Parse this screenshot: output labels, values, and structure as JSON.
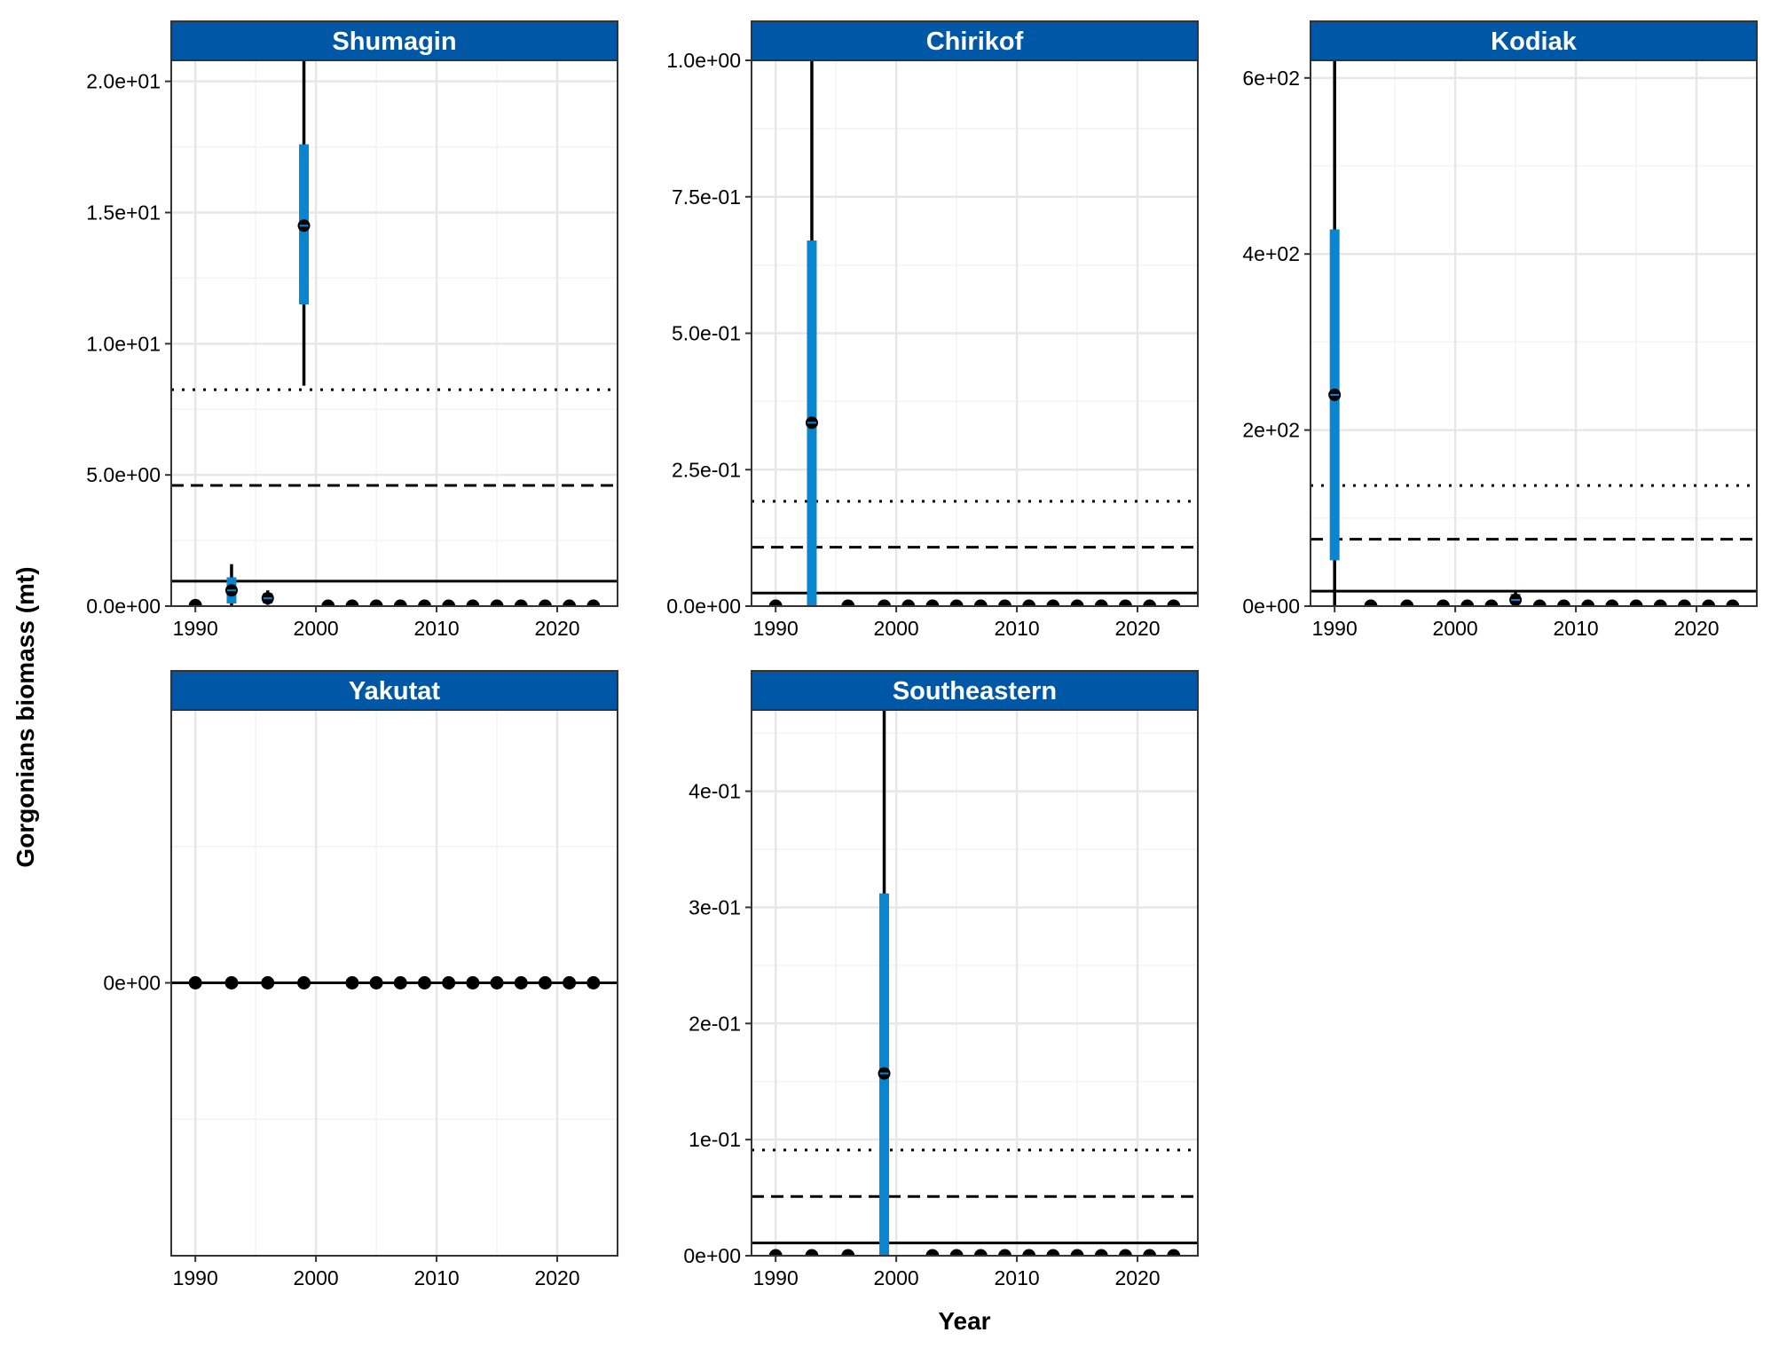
{
  "figure": {
    "y_axis_label": "Gorgonians biomass (mt)",
    "x_axis_label": "Year",
    "colors": {
      "strip_fill": "#0057A6",
      "strip_text": "#ffffff",
      "range_bar": "#0A86D0",
      "points": "#000000",
      "grid_major": "#E7E7E7",
      "grid_minor": "#F3F3F3",
      "panel_border": "#333333"
    },
    "reference_lines": [
      {
        "style": "solid",
        "meaning": "mean"
      },
      {
        "style": "dashed",
        "meaning": "mean + 1 sd"
      },
      {
        "style": "dotted",
        "meaning": "mean + 2 sd"
      }
    ]
  },
  "chart_data": [
    {
      "type": "scatter",
      "panel": "Shumagin",
      "title": "Shumagin",
      "xlim": [
        1988,
        2025
      ],
      "ylim": [
        0,
        20.8
      ],
      "x_ticks": [
        1990,
        2000,
        2010,
        2020
      ],
      "y_ticks": [
        0,
        5,
        10,
        15,
        20
      ],
      "y_tick_labels": [
        "0.0e+00",
        "5.0e+00",
        "1.0e+01",
        "1.5e+01",
        "2.0e+01"
      ],
      "reference_lines": {
        "mean": 0.95,
        "sd1": 4.6,
        "sd2": 8.25
      },
      "points": [
        {
          "year": 1990,
          "value": 0.02
        },
        {
          "year": 1993,
          "value": 0.6,
          "inner": [
            0.1,
            1.1
          ],
          "outer": [
            0,
            1.6
          ]
        },
        {
          "year": 1996,
          "value": 0.3,
          "inner": [
            0.1,
            0.5
          ],
          "outer": [
            0.05,
            0.6
          ]
        },
        {
          "year": 1999,
          "value": 14.5,
          "inner": [
            11.5,
            17.6
          ],
          "outer": [
            8.4,
            20.8
          ]
        },
        {
          "year": 2001,
          "value": 0.0
        },
        {
          "year": 2003,
          "value": 0.0
        },
        {
          "year": 2005,
          "value": 0.0
        },
        {
          "year": 2007,
          "value": 0.0
        },
        {
          "year": 2009,
          "value": 0.0
        },
        {
          "year": 2011,
          "value": 0.0
        },
        {
          "year": 2013,
          "value": 0.0
        },
        {
          "year": 2015,
          "value": 0.0
        },
        {
          "year": 2017,
          "value": 0.0
        },
        {
          "year": 2019,
          "value": 0.0
        },
        {
          "year": 2021,
          "value": 0.0
        },
        {
          "year": 2023,
          "value": 0.0
        }
      ]
    },
    {
      "type": "scatter",
      "panel": "Chirikof",
      "title": "Chirikof",
      "xlim": [
        1988,
        2025
      ],
      "ylim": [
        0,
        1.0
      ],
      "x_ticks": [
        1990,
        2000,
        2010,
        2020
      ],
      "y_ticks": [
        0,
        0.25,
        0.5,
        0.75,
        1.0
      ],
      "y_tick_labels": [
        "0.0e+00",
        "2.5e-01",
        "5.0e-01",
        "7.5e-01",
        "1.0e+00"
      ],
      "reference_lines": {
        "mean": 0.024,
        "sd1": 0.108,
        "sd2": 0.192
      },
      "points": [
        {
          "year": 1990,
          "value": 0.0
        },
        {
          "year": 1993,
          "value": 0.336,
          "inner": [
            0,
            0.67
          ],
          "outer": [
            0,
            1.0
          ]
        },
        {
          "year": 1996,
          "value": 0.0
        },
        {
          "year": 1999,
          "value": 0.0
        },
        {
          "year": 2001,
          "value": 0.0
        },
        {
          "year": 2003,
          "value": 0.0
        },
        {
          "year": 2005,
          "value": 0.0
        },
        {
          "year": 2007,
          "value": 0.0
        },
        {
          "year": 2009,
          "value": 0.0
        },
        {
          "year": 2011,
          "value": 0.0
        },
        {
          "year": 2013,
          "value": 0.0
        },
        {
          "year": 2015,
          "value": 0.0
        },
        {
          "year": 2017,
          "value": 0.0
        },
        {
          "year": 2019,
          "value": 0.0
        },
        {
          "year": 2021,
          "value": 0.0
        },
        {
          "year": 2023,
          "value": 0.0
        }
      ]
    },
    {
      "type": "scatter",
      "panel": "Kodiak",
      "title": "Kodiak",
      "xlim": [
        1988,
        2025
      ],
      "ylim": [
        0,
        620
      ],
      "x_ticks": [
        1990,
        2000,
        2010,
        2020
      ],
      "y_ticks": [
        0,
        200,
        400,
        600
      ],
      "y_tick_labels": [
        "0e+00",
        "2e+02",
        "4e+02",
        "6e+02"
      ],
      "reference_lines": {
        "mean": 17,
        "sd1": 76,
        "sd2": 137
      },
      "points": [
        {
          "year": 1990,
          "value": 240,
          "inner": [
            52,
            428
          ],
          "outer": [
            0,
            620
          ]
        },
        {
          "year": 1993,
          "value": 0.0
        },
        {
          "year": 1996,
          "value": 0.0
        },
        {
          "year": 1999,
          "value": 0.0
        },
        {
          "year": 2001,
          "value": 0.0
        },
        {
          "year": 2003,
          "value": 0.0
        },
        {
          "year": 2005,
          "value": 7,
          "inner": [
            2,
            14
          ],
          "outer": [
            0,
            16
          ]
        },
        {
          "year": 2007,
          "value": 0.0
        },
        {
          "year": 2009,
          "value": 0.0
        },
        {
          "year": 2011,
          "value": 0.0
        },
        {
          "year": 2013,
          "value": 0.0
        },
        {
          "year": 2015,
          "value": 0.0
        },
        {
          "year": 2017,
          "value": 0.0
        },
        {
          "year": 2019,
          "value": 0.0
        },
        {
          "year": 2021,
          "value": 0.0
        },
        {
          "year": 2023,
          "value": 0.0
        }
      ]
    },
    {
      "type": "scatter",
      "panel": "Yakutat",
      "title": "Yakutat",
      "xlim": [
        1988,
        2025
      ],
      "ylim": [
        -1,
        1
      ],
      "x_ticks": [
        1990,
        2000,
        2010,
        2020
      ],
      "y_ticks": [
        0
      ],
      "y_tick_labels": [
        "0e+00"
      ],
      "reference_lines": {
        "mean": 0,
        "sd1": 0,
        "sd2": 0
      },
      "points": [
        {
          "year": 1990,
          "value": 0.0
        },
        {
          "year": 1993,
          "value": 0.0
        },
        {
          "year": 1996,
          "value": 0.0
        },
        {
          "year": 1999,
          "value": 0.0
        },
        {
          "year": 2003,
          "value": 0.0
        },
        {
          "year": 2005,
          "value": 0.0
        },
        {
          "year": 2007,
          "value": 0.0
        },
        {
          "year": 2009,
          "value": 0.0
        },
        {
          "year": 2011,
          "value": 0.0
        },
        {
          "year": 2013,
          "value": 0.0
        },
        {
          "year": 2015,
          "value": 0.0
        },
        {
          "year": 2017,
          "value": 0.0
        },
        {
          "year": 2019,
          "value": 0.0
        },
        {
          "year": 2021,
          "value": 0.0
        },
        {
          "year": 2023,
          "value": 0.0
        }
      ]
    },
    {
      "type": "scatter",
      "panel": "Southeastern",
      "title": "Southeastern",
      "xlim": [
        1988,
        2025
      ],
      "ylim": [
        0,
        0.47
      ],
      "x_ticks": [
        1990,
        2000,
        2010,
        2020
      ],
      "y_ticks": [
        0,
        0.1,
        0.2,
        0.3,
        0.4
      ],
      "y_tick_labels": [
        "0e+00",
        "1e-01",
        "2e-01",
        "3e-01",
        "4e-01"
      ],
      "reference_lines": {
        "mean": 0.011,
        "sd1": 0.051,
        "sd2": 0.091
      },
      "points": [
        {
          "year": 1990,
          "value": 0.0
        },
        {
          "year": 1993,
          "value": 0.0
        },
        {
          "year": 1996,
          "value": 0.0
        },
        {
          "year": 1999,
          "value": 0.157,
          "inner": [
            0,
            0.312
          ],
          "outer": [
            0,
            0.47
          ]
        },
        {
          "year": 2003,
          "value": 0.0
        },
        {
          "year": 2005,
          "value": 0.0
        },
        {
          "year": 2007,
          "value": 0.0
        },
        {
          "year": 2009,
          "value": 0.0
        },
        {
          "year": 2011,
          "value": 0.0
        },
        {
          "year": 2013,
          "value": 0.0
        },
        {
          "year": 2015,
          "value": 0.0
        },
        {
          "year": 2017,
          "value": 0.0
        },
        {
          "year": 2019,
          "value": 0.0
        },
        {
          "year": 2021,
          "value": 0.0
        },
        {
          "year": 2023,
          "value": 0.0
        }
      ]
    }
  ]
}
